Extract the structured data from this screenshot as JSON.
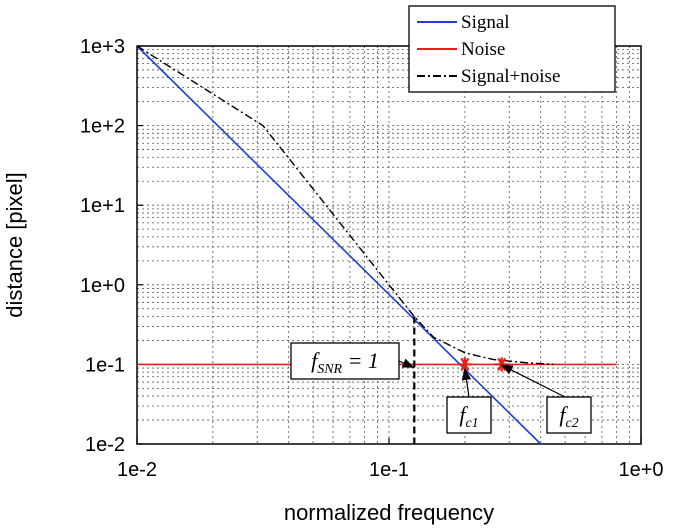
{
  "chart_data": {
    "type": "line",
    "xlabel": "normalized frequency",
    "ylabel": "distance [pixel]",
    "x_scale": "log",
    "y_scale": "log",
    "xlim": [
      0.01,
      1
    ],
    "ylim": [
      0.01,
      1000
    ],
    "x_ticks": [
      {
        "value": 0.01,
        "label": "1e-2"
      },
      {
        "value": 0.1,
        "label": "1e-1"
      },
      {
        "value": 1,
        "label": "1e+0"
      }
    ],
    "y_ticks": [
      {
        "value": 0.01,
        "label": "1e-2"
      },
      {
        "value": 0.1,
        "label": "1e-1"
      },
      {
        "value": 1,
        "label": "1e+0"
      },
      {
        "value": 10,
        "label": "1e+1"
      },
      {
        "value": 100,
        "label": "1e+2"
      },
      {
        "value": 1000,
        "label": "1e+3"
      }
    ],
    "grid": true,
    "legend_position": "top-right",
    "series": [
      {
        "name": "Signal",
        "color": "#1f3fd6",
        "style": "solid",
        "points": [
          [
            0.01,
            1000
          ],
          [
            0.4,
            0.01
          ]
        ]
      },
      {
        "name": "Noise",
        "color": "#e8201b",
        "style": "solid",
        "points": [
          [
            0.01,
            0.1
          ],
          [
            0.8,
            0.1
          ]
        ]
      },
      {
        "name": "Signal+noise",
        "color": "#000000",
        "style": "dashdot",
        "points": [
          [
            0.01,
            1000
          ],
          [
            0.0316,
            100
          ],
          [
            0.1,
            1
          ],
          [
            0.126,
            0.4
          ],
          [
            0.15,
            0.22
          ],
          [
            0.2,
            0.14
          ],
          [
            0.26,
            0.115
          ],
          [
            0.35,
            0.105
          ],
          [
            0.45,
            0.1
          ]
        ]
      }
    ],
    "vline": {
      "x": 0.126,
      "ymin": 0.01,
      "ymax": 0.4,
      "style": "dashed",
      "color": "#000000"
    },
    "markers": [
      {
        "id": "fc1",
        "x": 0.2,
        "y": 0.1,
        "color": "#e8201b",
        "symbol": "*"
      },
      {
        "id": "fc2",
        "x": 0.28,
        "y": 0.1,
        "color": "#e8201b",
        "symbol": "*"
      }
    ],
    "annotations": [
      {
        "id": "fsnr",
        "main": "f",
        "sub": "SNR",
        "rest": " = 1",
        "anchor_x": 0.125,
        "anchor_y": 0.092
      },
      {
        "id": "fc1",
        "main": "f",
        "sub": "c1",
        "rest": "",
        "anchor_x": 0.2,
        "anchor_y": 0.087
      },
      {
        "id": "fc2",
        "main": "f",
        "sub": "c2",
        "rest": "",
        "anchor_x": 0.28,
        "anchor_y": 0.098
      }
    ]
  }
}
